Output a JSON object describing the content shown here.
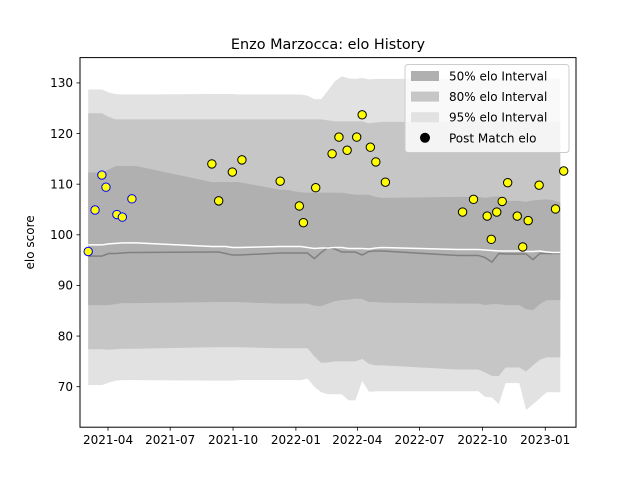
{
  "chart_data": {
    "type": "scatter",
    "title": "Enzo Marzocca: elo History",
    "xlabel": "",
    "ylabel": "elo score",
    "xlim": [
      "2021-02-19",
      "2023-02-15"
    ],
    "ylim": [
      62,
      135
    ],
    "x_ticks": [
      "2021-04",
      "2021-07",
      "2021-10",
      "2022-01",
      "2022-04",
      "2022-07",
      "2022-10",
      "2023-01"
    ],
    "x_tick_dates": [
      "2021-04-01",
      "2021-07-01",
      "2021-10-01",
      "2022-01-01",
      "2022-04-01",
      "2022-07-01",
      "2022-10-01",
      "2023-01-01"
    ],
    "y_ticks": [
      70,
      80,
      90,
      100,
      110,
      120,
      130
    ],
    "grid": false,
    "legend_position": "top-right",
    "legend": [
      {
        "label": "50% elo Interval",
        "color": "#b0b0b0",
        "kind": "band"
      },
      {
        "label": "80% elo Interval",
        "color": "#c6c6c6",
        "kind": "band"
      },
      {
        "label": "95% elo Interval",
        "color": "#e2e2e2",
        "kind": "band"
      },
      {
        "label": "Post Match elo",
        "color": "#000000",
        "kind": "marker"
      }
    ],
    "band_dates": [
      "2021-03-03",
      "2021-03-13",
      "2021-03-23",
      "2021-04-02",
      "2021-04-12",
      "2021-04-22",
      "2021-05-02",
      "2021-05-12",
      "2021-08-31",
      "2021-09-10",
      "2021-09-20",
      "2021-09-30",
      "2021-10-10",
      "2021-12-09",
      "2021-12-19",
      "2021-12-29",
      "2022-01-08",
      "2022-01-18",
      "2022-01-28",
      "2022-02-07",
      "2022-02-17",
      "2022-02-27",
      "2022-03-09",
      "2022-03-19",
      "2022-03-29",
      "2022-04-08",
      "2022-04-18",
      "2022-04-28",
      "2022-05-08",
      "2022-08-26",
      "2022-09-05",
      "2022-09-15",
      "2022-09-25",
      "2022-10-05",
      "2022-10-15",
      "2022-10-25",
      "2022-11-04",
      "2022-11-14",
      "2022-11-24",
      "2022-12-04",
      "2022-12-14",
      "2022-12-24",
      "2023-01-03",
      "2023-01-13",
      "2023-01-23"
    ],
    "series": [
      {
        "name": "95% elo Interval",
        "color": "#e2e2e2",
        "upper": [
          128.7,
          128.7,
          128.7,
          128.1,
          127.8,
          127.7,
          127.7,
          127.7,
          127.8,
          127.8,
          127.8,
          127.8,
          127.7,
          127.7,
          127.7,
          127.7,
          127.7,
          127.5,
          126.8,
          126.8,
          128.5,
          130.3,
          131.3,
          130.9,
          130.8,
          131.0,
          130.7,
          130.8,
          130.8,
          130.8,
          130.8,
          130.8,
          130.8,
          130.5,
          130.9,
          131.0,
          130.9,
          130.9,
          130.9,
          130.9,
          130.9,
          130.9,
          130.9,
          130.9,
          130.9
        ],
        "lower": [
          70.3,
          70.3,
          70.3,
          70.8,
          71.2,
          71.3,
          71.3,
          71.3,
          71.2,
          71.2,
          71.2,
          71.2,
          71.3,
          71.3,
          71.3,
          71.3,
          71.3,
          71.6,
          70.0,
          68.9,
          68.5,
          68.5,
          68.5,
          67.3,
          67.3,
          71.1,
          69.0,
          69.1,
          69.1,
          69.1,
          69.1,
          69.1,
          69.1,
          68.0,
          67.9,
          66.5,
          70.7,
          70.7,
          70.7,
          65.4,
          66.5,
          67.7,
          68.9,
          68.9,
          68.9
        ]
      },
      {
        "name": "80% elo Interval",
        "color": "#c6c6c6",
        "upper": [
          124.0,
          124.0,
          124.0,
          123.3,
          122.8,
          122.8,
          122.8,
          122.8,
          122.8,
          122.8,
          122.8,
          122.8,
          122.8,
          122.8,
          122.8,
          122.8,
          122.8,
          122.8,
          122.8,
          122.8,
          122.6,
          122.4,
          122.4,
          122.4,
          122.4,
          122.4,
          122.0,
          122.2,
          122.3,
          122.3,
          122.3,
          122.3,
          122.3,
          122.3,
          122.3,
          122.3,
          122.3,
          122.3,
          122.3,
          122.3,
          122.3,
          122.3,
          122.3,
          122.3,
          122.3
        ],
        "lower": [
          77.4,
          77.4,
          77.4,
          77.3,
          77.4,
          77.5,
          77.5,
          77.5,
          77.8,
          77.8,
          77.8,
          77.8,
          77.8,
          77.6,
          77.6,
          77.6,
          77.6,
          77.6,
          76.0,
          74.7,
          74.8,
          75.0,
          75.0,
          75.0,
          75.0,
          75.5,
          74.5,
          74.2,
          74.2,
          73.4,
          73.4,
          73.4,
          73.4,
          72.8,
          72.1,
          72.1,
          73.8,
          73.8,
          73.8,
          73.0,
          74.2,
          75.3,
          75.8,
          75.8,
          75.8
        ]
      },
      {
        "name": "50% elo Interval",
        "color": "#b0b0b0",
        "upper": [
          112.3,
          112.3,
          112.3,
          112.9,
          113.6,
          113.6,
          113.6,
          113.6,
          110.4,
          110.4,
          110.4,
          110.4,
          110.4,
          108.9,
          108.9,
          108.6,
          108.4,
          108.3,
          108.3,
          108.3,
          108.3,
          108.3,
          108.3,
          108.1,
          107.9,
          107.9,
          107.9,
          107.5,
          107.3,
          107.5,
          107.5,
          107.5,
          107.5,
          107.3,
          107.5,
          107.6,
          106.7,
          106.7,
          106.7,
          106.5,
          106.8,
          106.9,
          107.0,
          106.8,
          106.4
        ],
        "lower": [
          86.1,
          86.1,
          86.1,
          86.1,
          86.3,
          86.5,
          86.5,
          86.5,
          86.7,
          86.7,
          86.7,
          86.7,
          86.7,
          86.4,
          86.4,
          86.4,
          86.4,
          86.4,
          86.0,
          85.9,
          86.4,
          86.9,
          87.1,
          87.2,
          87.4,
          87.3,
          86.7,
          86.7,
          86.6,
          86.4,
          86.4,
          86.4,
          86.4,
          86.1,
          86.3,
          86.3,
          86.1,
          86.1,
          86.1,
          85.3,
          85.1,
          86.3,
          87.1,
          87.1,
          87.1
        ]
      },
      {
        "name": "",
        "color": "#808080",
        "values": [
          95.8,
          95.8,
          95.8,
          96.3,
          96.3,
          96.4,
          96.5,
          96.5,
          96.6,
          96.6,
          96.3,
          96.0,
          96.0,
          96.4,
          96.4,
          96.4,
          96.4,
          96.4,
          95.3,
          96.5,
          97.5,
          97.2,
          96.6,
          96.6,
          96.6,
          96.0,
          96.7,
          96.8,
          96.8,
          95.9,
          95.9,
          95.9,
          95.9,
          95.5,
          94.6,
          96.3,
          96.2,
          96.2,
          96.2,
          96.2,
          95.1,
          96.3,
          96.3,
          96.3,
          96.3
        ]
      },
      {
        "name": "",
        "color": "#ffffff",
        "values": [
          98.0,
          98.0,
          98.0,
          98.2,
          98.3,
          98.4,
          98.4,
          98.4,
          97.7,
          97.7,
          97.7,
          97.5,
          97.5,
          97.7,
          97.7,
          97.7,
          97.7,
          97.5,
          97.3,
          97.4,
          97.4,
          97.5,
          97.5,
          97.3,
          97.3,
          97.3,
          97.2,
          97.4,
          97.5,
          97.1,
          97.1,
          97.1,
          97.1,
          97.0,
          96.9,
          96.8,
          96.8,
          96.8,
          96.8,
          96.7,
          96.7,
          96.8,
          96.6,
          96.5,
          96.5
        ]
      }
    ],
    "points": [
      {
        "x": "2021-03-03",
        "y": 96.7,
        "color": "#0000ff"
      },
      {
        "x": "2021-03-13",
        "y": 104.9,
        "color": "#0000ff"
      },
      {
        "x": "2021-03-23",
        "y": 111.8,
        "color": "#0000ff"
      },
      {
        "x": "2021-03-29",
        "y": 109.4,
        "color": "#0000ff"
      },
      {
        "x": "2021-04-14",
        "y": 104.0,
        "color": "#0000ff"
      },
      {
        "x": "2021-04-22",
        "y": 103.5,
        "color": "#0000ff"
      },
      {
        "x": "2021-05-06",
        "y": 107.1,
        "color": "#0000ff"
      },
      {
        "x": "2021-08-31",
        "y": 114.0,
        "color": "#000000"
      },
      {
        "x": "2021-09-10",
        "y": 106.7,
        "color": "#000000"
      },
      {
        "x": "2021-09-30",
        "y": 112.4,
        "color": "#000000"
      },
      {
        "x": "2021-10-14",
        "y": 114.8,
        "color": "#000000"
      },
      {
        "x": "2021-12-09",
        "y": 110.6,
        "color": "#000000"
      },
      {
        "x": "2022-01-06",
        "y": 105.7,
        "color": "#000000"
      },
      {
        "x": "2022-01-12",
        "y": 102.4,
        "color": "#000000"
      },
      {
        "x": "2022-01-30",
        "y": 109.3,
        "color": "#000000"
      },
      {
        "x": "2022-02-23",
        "y": 116.0,
        "color": "#000000"
      },
      {
        "x": "2022-03-05",
        "y": 119.3,
        "color": "#000000"
      },
      {
        "x": "2022-03-17",
        "y": 116.7,
        "color": "#000000"
      },
      {
        "x": "2022-03-31",
        "y": 119.3,
        "color": "#000000"
      },
      {
        "x": "2022-04-08",
        "y": 123.7,
        "color": "#000000"
      },
      {
        "x": "2022-04-20",
        "y": 117.3,
        "color": "#000000"
      },
      {
        "x": "2022-04-28",
        "y": 114.4,
        "color": "#000000"
      },
      {
        "x": "2022-05-12",
        "y": 110.4,
        "color": "#000000"
      },
      {
        "x": "2022-09-02",
        "y": 104.5,
        "color": "#000000"
      },
      {
        "x": "2022-09-18",
        "y": 107.0,
        "color": "#000000"
      },
      {
        "x": "2022-10-08",
        "y": 103.7,
        "color": "#000000"
      },
      {
        "x": "2022-10-14",
        "y": 99.1,
        "color": "#000000"
      },
      {
        "x": "2022-10-22",
        "y": 104.5,
        "color": "#000000"
      },
      {
        "x": "2022-10-30",
        "y": 106.6,
        "color": "#000000"
      },
      {
        "x": "2022-11-07",
        "y": 110.3,
        "color": "#000000"
      },
      {
        "x": "2022-11-21",
        "y": 103.7,
        "color": "#000000"
      },
      {
        "x": "2022-11-29",
        "y": 97.6,
        "color": "#000000"
      },
      {
        "x": "2022-12-07",
        "y": 102.8,
        "color": "#000000"
      },
      {
        "x": "2022-12-23",
        "y": 109.8,
        "color": "#000000"
      },
      {
        "x": "2023-01-16",
        "y": 105.1,
        "color": "#000000"
      },
      {
        "x": "2023-01-28",
        "y": 112.6,
        "color": "#000000"
      }
    ],
    "point_fill": "#ffff00"
  }
}
